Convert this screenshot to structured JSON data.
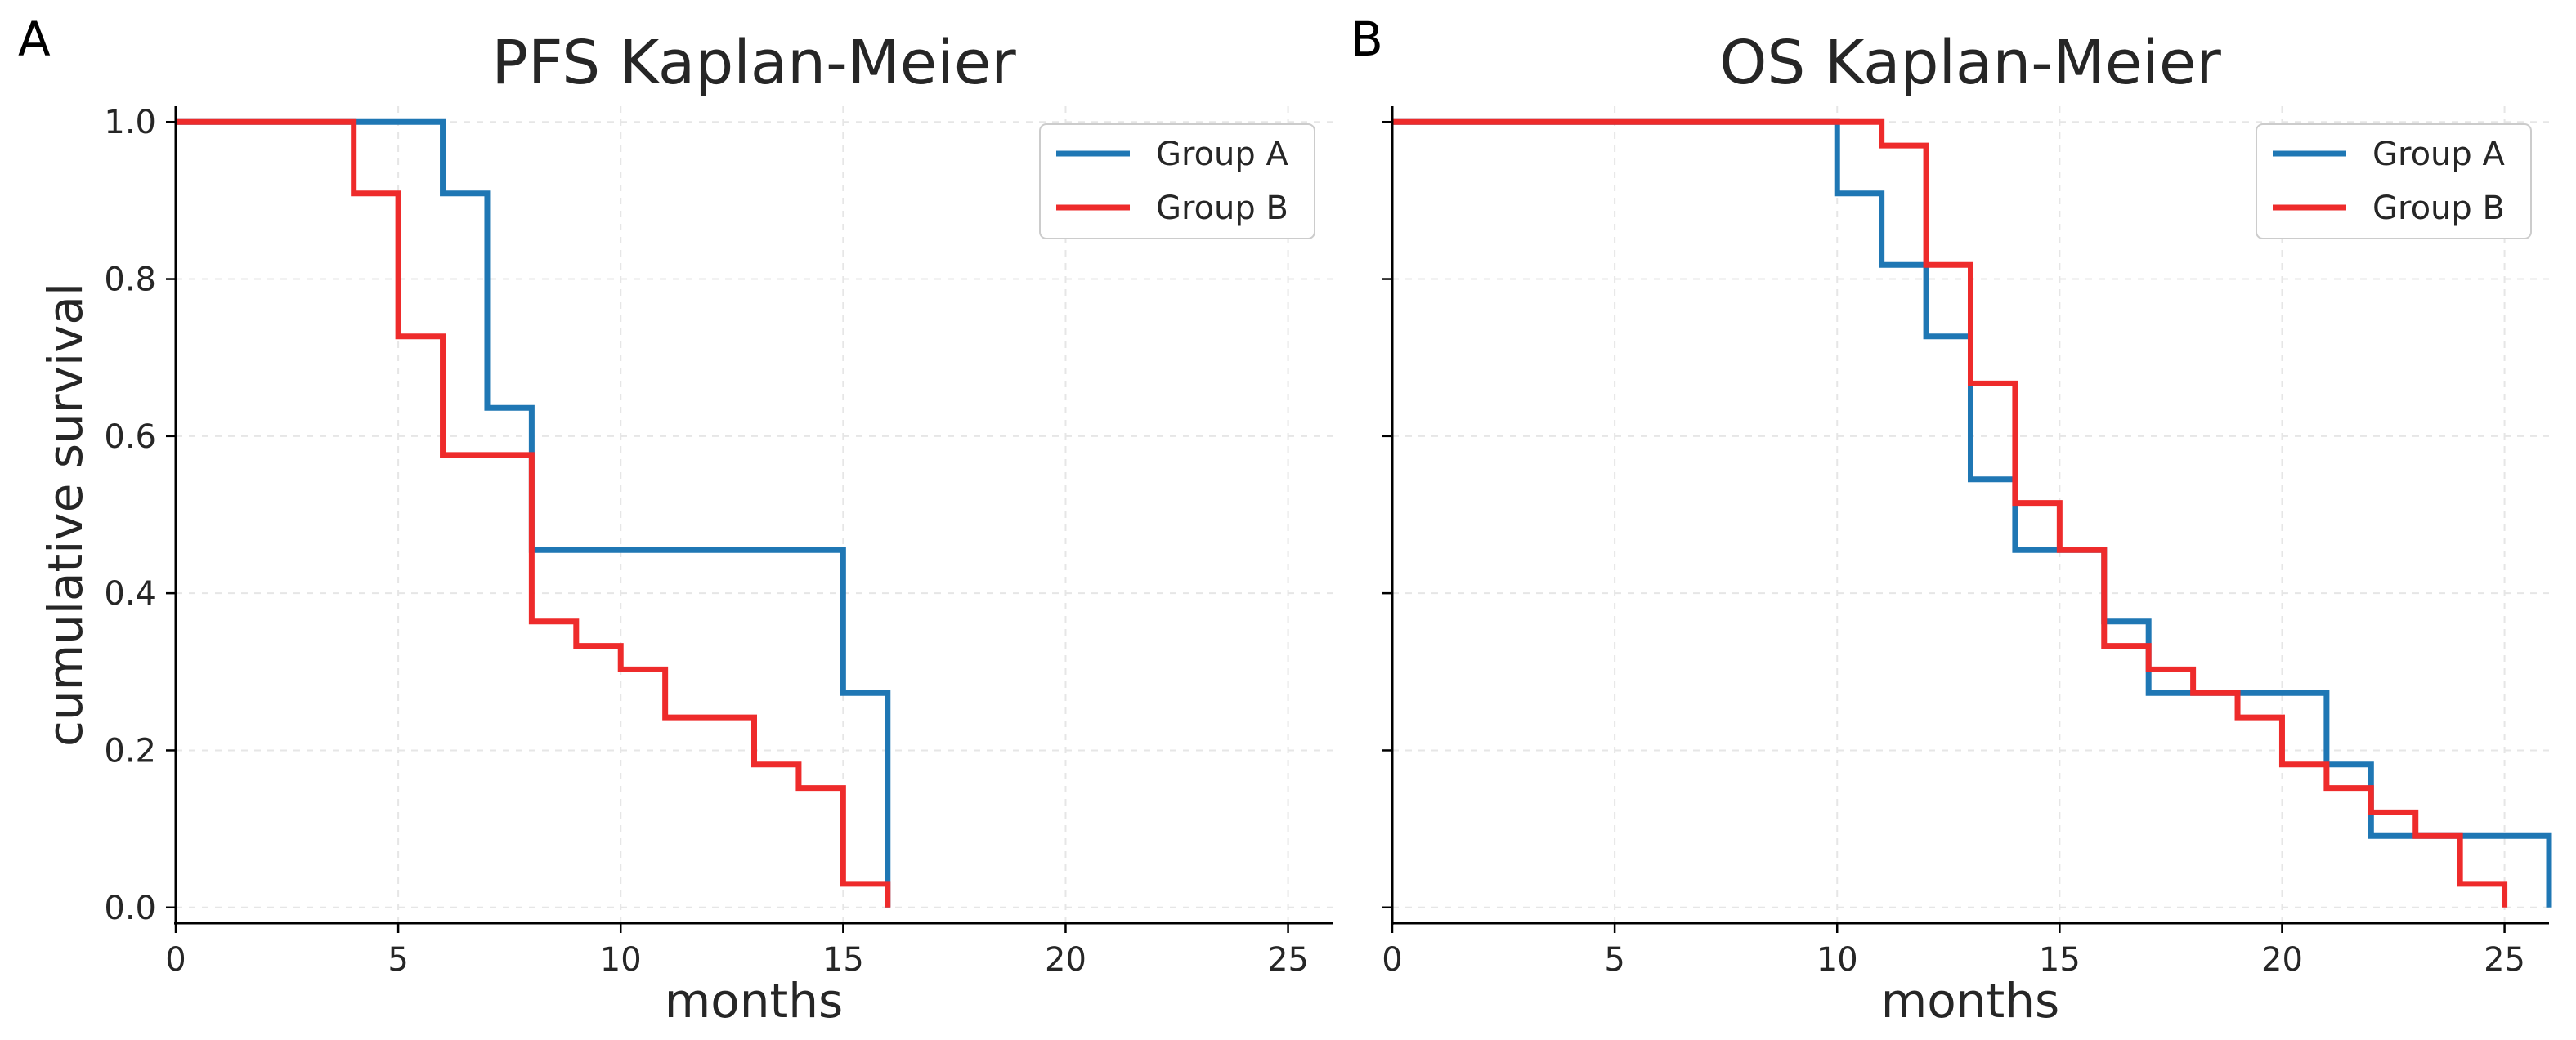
{
  "figure": {
    "panel_letters": [
      "A",
      "B"
    ]
  },
  "colors": {
    "group_a": "#1f77b4",
    "group_b": "#ee2b2b",
    "axis": "#000000",
    "grid": "#e6e6e6",
    "text": "#262626"
  },
  "chart_data": [
    {
      "type": "line",
      "step": "post",
      "panel": "A",
      "title": "PFS Kaplan-Meier",
      "xlabel": "months",
      "ylabel": "cumulative survival",
      "xlim": [
        0,
        26
      ],
      "ylim": [
        -0.02,
        1.02
      ],
      "xticks": [
        0,
        5,
        10,
        15,
        20,
        25
      ],
      "yticks": [
        0.0,
        0.2,
        0.4,
        0.6,
        0.8,
        1.0
      ],
      "xtick_labels": [
        "0",
        "5",
        "10",
        "15",
        "20",
        "25"
      ],
      "ytick_labels": [
        "0.0",
        "0.2",
        "0.4",
        "0.6",
        "0.8",
        "1.0"
      ],
      "grid": true,
      "legend_position": "top-right",
      "series": [
        {
          "name": "Group A",
          "color": "#1f77b4",
          "x": [
            0,
            6,
            7,
            8,
            15,
            16
          ],
          "y": [
            1.0,
            0.909,
            0.636,
            0.455,
            0.273,
            0.182
          ],
          "end": [
            16,
            0.0
          ]
        },
        {
          "name": "Group B",
          "color": "#ee2b2b",
          "x": [
            0,
            4,
            5,
            6,
            8,
            9,
            10,
            11,
            13,
            14,
            15
          ],
          "y": [
            1.0,
            0.909,
            0.727,
            0.576,
            0.364,
            0.333,
            0.303,
            0.242,
            0.182,
            0.152,
            0.03
          ],
          "end": [
            16,
            0.0
          ]
        }
      ]
    },
    {
      "type": "line",
      "step": "post",
      "panel": "B",
      "title": "OS Kaplan-Meier",
      "xlabel": "months",
      "ylabel": "",
      "xlim": [
        0,
        26
      ],
      "ylim": [
        -0.02,
        1.02
      ],
      "xticks": [
        0,
        5,
        10,
        15,
        20,
        25
      ],
      "yticks": [
        0.0,
        0.2,
        0.4,
        0.6,
        0.8,
        1.0
      ],
      "xtick_labels": [
        "0",
        "5",
        "10",
        "15",
        "20",
        "25"
      ],
      "ytick_labels": [],
      "grid": true,
      "legend_position": "top-right",
      "series": [
        {
          "name": "Group A",
          "color": "#1f77b4",
          "x": [
            0,
            10,
            11,
            12,
            13,
            14,
            16,
            17,
            21,
            22
          ],
          "y": [
            1.0,
            0.909,
            0.818,
            0.727,
            0.545,
            0.455,
            0.364,
            0.273,
            0.182,
            0.091
          ],
          "end": [
            26,
            0.0
          ]
        },
        {
          "name": "Group B",
          "color": "#ee2b2b",
          "x": [
            0,
            11,
            12,
            13,
            14,
            15,
            16,
            17,
            18,
            19,
            20,
            21,
            22,
            23,
            24
          ],
          "y": [
            1.0,
            0.97,
            0.818,
            0.667,
            0.515,
            0.455,
            0.333,
            0.303,
            0.273,
            0.242,
            0.182,
            0.152,
            0.121,
            0.091,
            0.03
          ],
          "end": [
            25,
            0.0
          ]
        }
      ]
    }
  ]
}
